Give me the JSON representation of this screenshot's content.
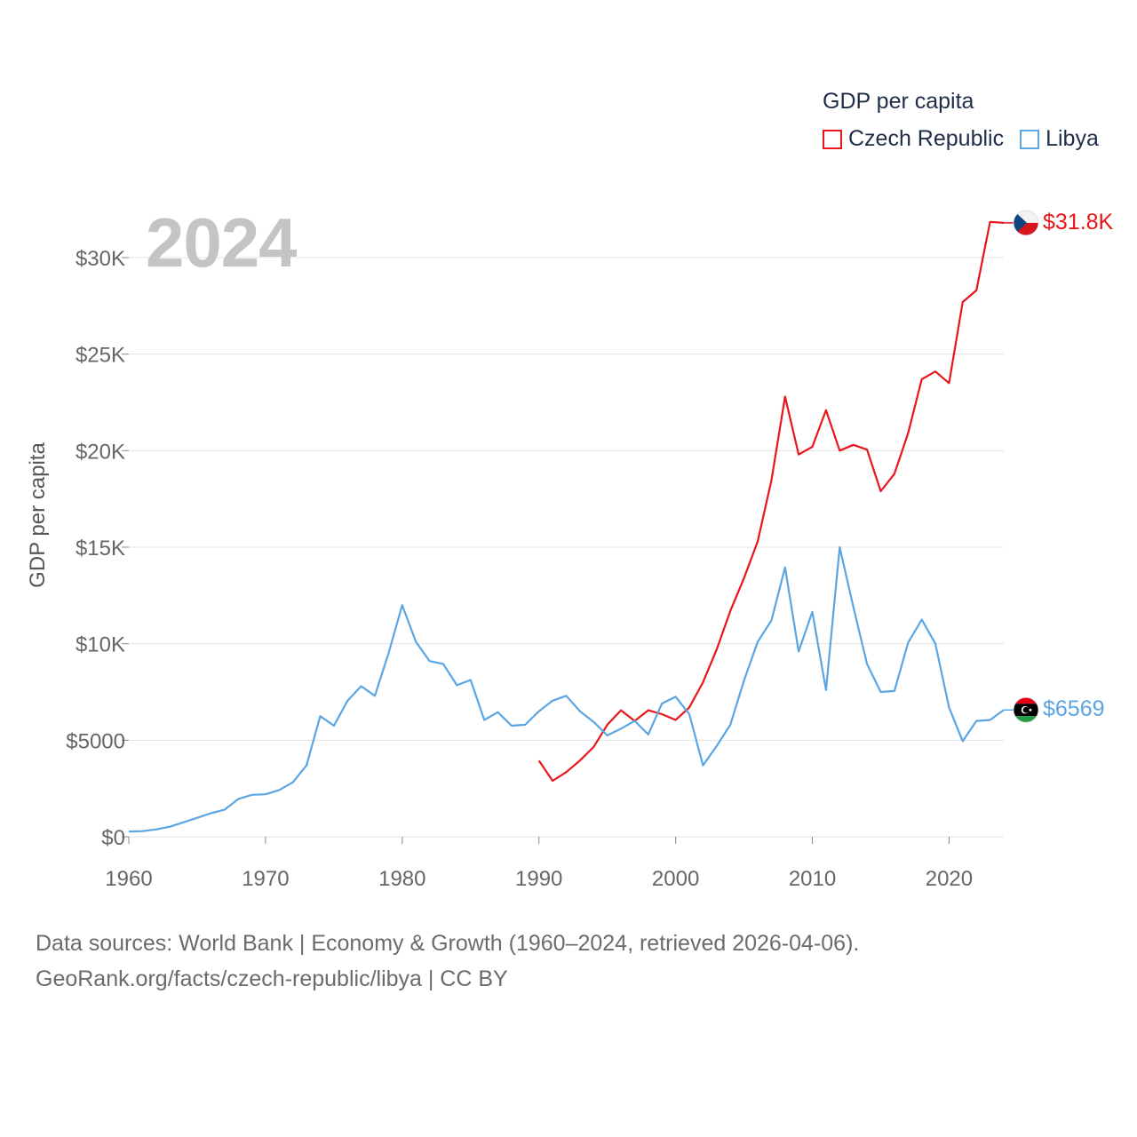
{
  "legend": {
    "title": "GDP per capita",
    "items": [
      {
        "name": "Czech Republic",
        "color": "#e8151b"
      },
      {
        "name": "Libya",
        "color": "#5aa5e4"
      }
    ]
  },
  "year_display": "2024",
  "source_line1": "Data sources: World Bank | Economy & Growth (1960–2024, retrieved 2026-04-06).",
  "source_line2": "GeoRank.org/facts/czech-republic/libya | CC BY",
  "end_labels": {
    "czech": "$31.8K",
    "libya": "$6569"
  },
  "chart_data": {
    "type": "line",
    "title": "GDP per capita",
    "xlabel": "",
    "ylabel": "GDP per capita",
    "xlim": [
      1960,
      2024
    ],
    "ylim": [
      0,
      32000
    ],
    "x_ticks": [
      1960,
      1970,
      1980,
      1990,
      2000,
      2010,
      2020
    ],
    "x_tick_labels": [
      "1960",
      "1970",
      "1980",
      "1990",
      "2000",
      "2010",
      "2020"
    ],
    "y_ticks": [
      0,
      5000,
      10000,
      15000,
      20000,
      25000,
      30000
    ],
    "y_tick_labels": [
      "$0",
      "$5000",
      "$10K",
      "$15K",
      "$20K",
      "$25K",
      "$30K"
    ],
    "grid": true,
    "legend_position": "top-right",
    "series": [
      {
        "name": "Czech Republic",
        "color": "#e8151b",
        "x": [
          1990,
          1991,
          1992,
          1993,
          1994,
          1995,
          1996,
          1997,
          1998,
          1999,
          2000,
          2001,
          2002,
          2003,
          2004,
          2005,
          2006,
          2007,
          2008,
          2009,
          2010,
          2011,
          2012,
          2013,
          2014,
          2015,
          2016,
          2017,
          2018,
          2019,
          2020,
          2021,
          2022,
          2023,
          2024
        ],
        "values": [
          3950,
          2900,
          3350,
          3950,
          4650,
          5800,
          6550,
          6000,
          6550,
          6350,
          6050,
          6700,
          8000,
          9700,
          11700,
          13400,
          15300,
          18450,
          22800,
          19800,
          20200,
          22100,
          20000,
          20300,
          20050,
          17900,
          18800,
          20900,
          23700,
          24100,
          23500,
          27700,
          28300,
          31850,
          31800
        ]
      },
      {
        "name": "Libya",
        "color": "#5aa5e4",
        "x": [
          1960,
          1961,
          1962,
          1963,
          1964,
          1965,
          1966,
          1967,
          1968,
          1969,
          1970,
          1971,
          1972,
          1973,
          1974,
          1975,
          1976,
          1977,
          1978,
          1979,
          1980,
          1981,
          1982,
          1983,
          1984,
          1985,
          1986,
          1987,
          1988,
          1989,
          1990,
          1991,
          1992,
          1993,
          1994,
          1995,
          1996,
          1997,
          1998,
          1999,
          2000,
          2001,
          2002,
          2003,
          2004,
          2005,
          2006,
          2007,
          2008,
          2009,
          2010,
          2011,
          2012,
          2013,
          2014,
          2015,
          2016,
          2017,
          2018,
          2019,
          2020,
          2021,
          2022,
          2023,
          2024
        ],
        "values": [
          270,
          290,
          380,
          520,
          750,
          980,
          1220,
          1400,
          1950,
          2170,
          2200,
          2420,
          2820,
          3700,
          6250,
          5750,
          7050,
          7800,
          7300,
          9500,
          12000,
          10100,
          9100,
          8950,
          7850,
          8120,
          6050,
          6450,
          5750,
          5800,
          6500,
          7050,
          7300,
          6500,
          5950,
          5250,
          5600,
          6000,
          5300,
          6900,
          7250,
          6350,
          3700,
          4700,
          5800,
          8100,
          10100,
          11200,
          13950,
          9600,
          11650,
          7600,
          15000,
          11900,
          8950,
          7500,
          7550,
          10050,
          11250,
          10000,
          6700,
          4950,
          6000,
          6050,
          6569
        ]
      }
    ]
  }
}
